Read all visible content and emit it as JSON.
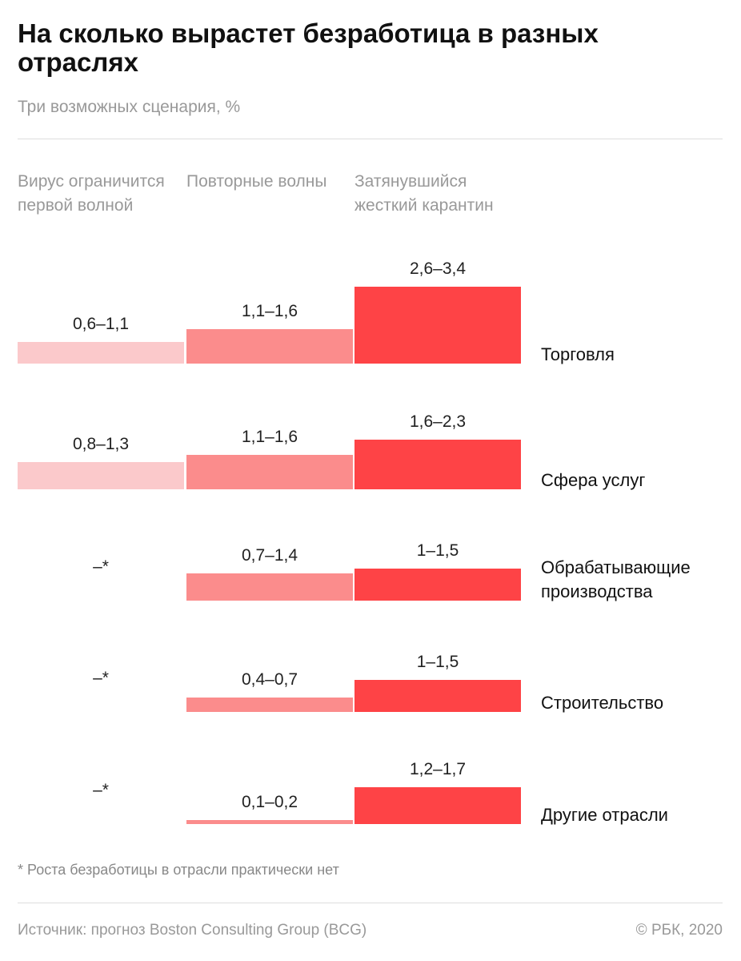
{
  "chart_data": {
    "type": "range-bar",
    "title": "На сколько вырастет безработица в разных отраслях",
    "subtitle": "Три возможных сценария, %",
    "categories": [
      "Торговля",
      "Сфера услуг",
      "Обрабатывающие производства",
      "Строительство",
      "Другие отрасли"
    ],
    "series": [
      {
        "name": "Вирус ограничится первой волной",
        "color": "#fbc9cb",
        "low": [
          0.6,
          0.8,
          null,
          null,
          null
        ],
        "high": [
          1.1,
          1.3,
          null,
          null,
          null
        ],
        "value_labels": [
          "0,6–1,1",
          "0,8–1,3",
          "–*",
          "–*",
          "–*"
        ]
      },
      {
        "name": "Повторные волны",
        "color": "#fb8c8c",
        "low": [
          1.1,
          1.1,
          0.7,
          0.4,
          0.1
        ],
        "high": [
          1.6,
          1.6,
          1.4,
          0.7,
          0.2
        ],
        "value_labels": [
          "1,1–1,6",
          "1,1–1,6",
          "0,7–1,4",
          "0,4–0,7",
          "0,1–0,2"
        ]
      },
      {
        "name": "Затянувшийся жесткий карантин",
        "color": "#fe4346",
        "low": [
          2.6,
          1.6,
          1,
          1,
          1.2
        ],
        "high": [
          3.4,
          2.3,
          1.5,
          1.5,
          1.7
        ],
        "value_labels": [
          "2,6–3,4",
          "1,6–2,3",
          "1–1,5",
          "1–1,5",
          "1,2–1,7"
        ]
      }
    ],
    "footnote": "* Роста безработицы в отрасли практически нет",
    "source": "Источник: прогноз Boston Consulting Group (BCG)",
    "copyright": "© РБК, 2020"
  }
}
